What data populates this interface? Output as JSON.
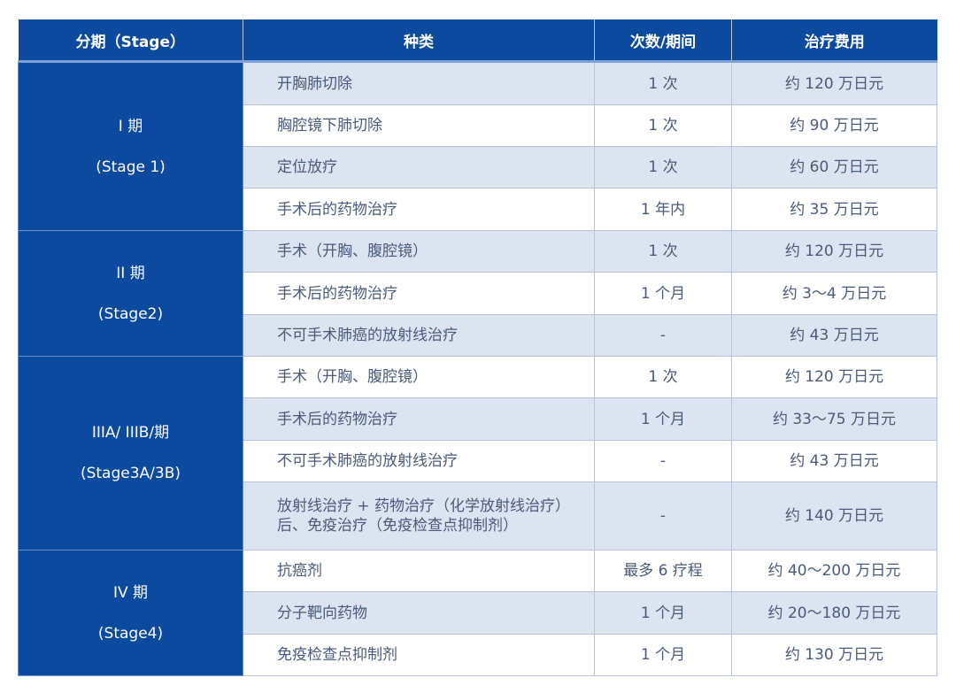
{
  "colors": {
    "header_bg": "#0b4a9e",
    "stripe": "#dce3f1",
    "text": "#4a5a7a"
  },
  "headers": [
    "分期（Stage）",
    "种类",
    "次数/期间",
    "治疗费用"
  ],
  "groups": [
    {
      "stage": "I 期",
      "stage_en": "(Stage 1)",
      "rows": [
        {
          "type": "开胸肺切除",
          "count": "1 次",
          "cost": "约 120 万日元"
        },
        {
          "type": "胸腔镜下肺切除",
          "count": "1 次",
          "cost": "约 90 万日元"
        },
        {
          "type": "定位放疗",
          "count": "1 次",
          "cost": "约 60 万日元"
        },
        {
          "type": "手术后的药物治疗",
          "count": "1 年内",
          "cost": "约 35 万日元"
        }
      ]
    },
    {
      "stage": "II 期",
      "stage_en": "(Stage2)",
      "rows": [
        {
          "type": "手术（开胸、腹腔镜）",
          "count": "1 次",
          "cost": "约 120 万日元"
        },
        {
          "type": "手术后的药物治疗",
          "count": "1 个月",
          "cost": "约 3～4 万日元"
        },
        {
          "type": "不可手术肺癌的放射线治疗",
          "count": "-",
          "cost": "约 43 万日元"
        }
      ]
    },
    {
      "stage": "IIIA/ IIIB/期",
      "stage_en": "(Stage3A/3B)",
      "rows": [
        {
          "type": "手术（开胸、腹腔镜）",
          "count": "1 次",
          "cost": "约 120 万日元"
        },
        {
          "type": "手术后的药物治疗",
          "count": "1 个月",
          "cost": "约 33～75 万日元"
        },
        {
          "type": "不可手术肺癌的放射线治疗",
          "count": "-",
          "cost": "约 43 万日元"
        },
        {
          "type": "放射线治疗 + 药物治疗（化学放射线治疗）后、免疫治疗（免疫检查点抑制剂）",
          "count": "-",
          "cost": "约 140 万日元"
        }
      ]
    },
    {
      "stage": "IV 期",
      "stage_en": "(Stage4)",
      "rows": [
        {
          "type": "抗癌剂",
          "count": "最多 6 疗程",
          "cost": "约 40～200 万日元"
        },
        {
          "type": "分子靶向药物",
          "count": "1 个月",
          "cost": "约 20～180 万日元"
        },
        {
          "type": "免疫检查点抑制剂",
          "count": "1 个月",
          "cost": "约 130 万日元"
        }
      ]
    }
  ]
}
